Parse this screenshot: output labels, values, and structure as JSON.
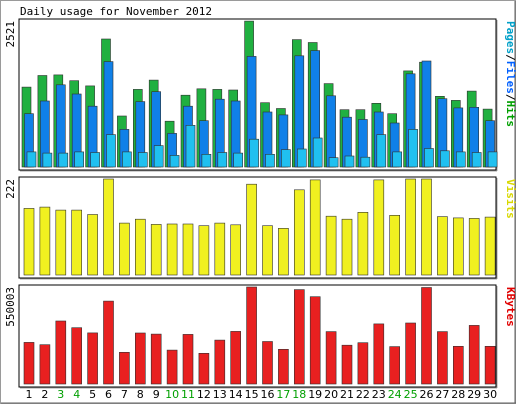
{
  "title": "Daily usage for November 2012",
  "chart_data": {
    "type": "bar",
    "categories": [
      "1",
      "2",
      "3",
      "4",
      "5",
      "6",
      "7",
      "8",
      "9",
      "10",
      "11",
      "12",
      "13",
      "14",
      "15",
      "16",
      "17",
      "18",
      "19",
      "20",
      "21",
      "22",
      "23",
      "24",
      "25",
      "26",
      "27",
      "28",
      "29",
      "30"
    ],
    "weekend_days": [
      "3",
      "4",
      "10",
      "11",
      "17",
      "18",
      "24",
      "25"
    ],
    "panels": [
      {
        "id": "hits",
        "ymax_label": "2521",
        "ymax": 2521,
        "legend_parts": [
          {
            "text": "Pages",
            "color": "#00a0c8"
          },
          {
            "text": "/",
            "color": "#000000"
          },
          {
            "text": "Files",
            "color": "#0060ff"
          },
          {
            "text": "/",
            "color": "#000000"
          },
          {
            "text": "Hits",
            "color": "#00a000"
          }
        ],
        "series": [
          {
            "name": "Hits",
            "color": "#20b040",
            "values": [
              1380,
              1580,
              1590,
              1490,
              1400,
              2210,
              880,
              1340,
              1500,
              790,
              1240,
              1350,
              1340,
              1330,
              2520,
              1110,
              1010,
              2200,
              2150,
              1440,
              990,
              990,
              1100,
              920,
              1660,
              1810,
              1220,
              1150,
              1310,
              1000
            ]
          },
          {
            "name": "Files",
            "color": "#1080e8",
            "values": [
              920,
              1140,
              1420,
              1260,
              1050,
              1820,
              650,
              1130,
              1300,
              580,
              1050,
              800,
              1170,
              1140,
              1910,
              950,
              900,
              1920,
              2010,
              1230,
              860,
              820,
              950,
              760,
              1610,
              1830,
              1180,
              1020,
              1030,
              800
            ]
          },
          {
            "name": "Pages",
            "color": "#20c0f0",
            "values": [
              260,
              240,
              240,
              260,
              250,
              560,
              260,
              250,
              370,
              200,
              720,
              220,
              250,
              240,
              480,
              220,
              300,
              310,
              500,
              160,
              190,
              170,
              560,
              260,
              650,
              320,
              280,
              260,
              250,
              260
            ]
          }
        ]
      },
      {
        "id": "visits",
        "ymax_label": "222",
        "ymax": 222,
        "legend_parts": [
          {
            "text": "Visits",
            "color": "#d8d800"
          }
        ],
        "series": [
          {
            "name": "Visits",
            "color": "#f0f020",
            "values": [
              154,
              157,
              150,
              150,
              140,
              222,
              120,
              129,
              117,
              118,
              118,
              114,
              120,
              116,
              210,
              114,
              108,
              197,
              220,
              136,
              129,
              145,
              220,
              138,
              222,
              222,
              135,
              132,
              131,
              134
            ]
          }
        ]
      },
      {
        "id": "kbytes",
        "ymax_label": "550003",
        "ymax": 550003,
        "legend_parts": [
          {
            "text": "KBytes",
            "color": "#e00000"
          }
        ],
        "series": [
          {
            "name": "KBytes",
            "color": "#e82020",
            "values": [
              236000,
              223000,
              357000,
              319000,
              290000,
              470000,
              180000,
              289000,
              283000,
              192000,
              281000,
              174000,
              249000,
              298000,
              550003,
              241000,
              197000,
              535000,
              495000,
              297000,
              220000,
              234000,
              341000,
              212000,
              346000,
              547000,
              297000,
              214000,
              332000,
              214000
            ]
          }
        ]
      }
    ]
  }
}
